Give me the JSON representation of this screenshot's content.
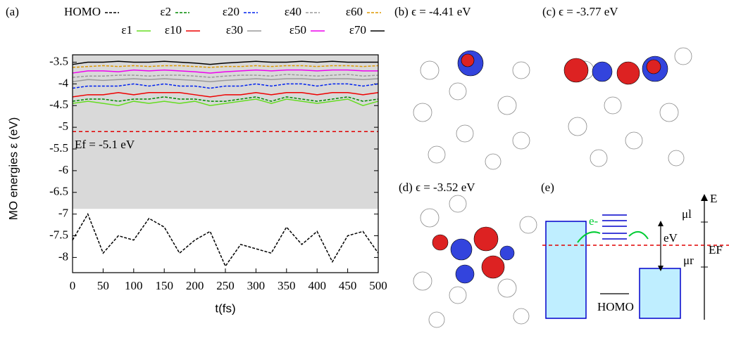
{
  "chart_data": {
    "type": "line",
    "panel_label": "(a)",
    "x_label": "t(fs)",
    "y_label": "MO energies ε (eV)",
    "x": [
      0,
      25,
      50,
      75,
      100,
      125,
      150,
      175,
      200,
      225,
      250,
      275,
      300,
      325,
      350,
      375,
      400,
      425,
      450,
      475,
      500
    ],
    "xlim": [
      0,
      500
    ],
    "xticks": [
      0,
      50,
      100,
      150,
      200,
      250,
      300,
      350,
      400,
      450,
      500
    ],
    "ylim": [
      -8.35,
      -3.33
    ],
    "yticks": [
      -8,
      -7.5,
      -7,
      -6.5,
      -6,
      -5.5,
      -5,
      -4.5,
      -4,
      -3.5
    ],
    "shaded_range": [
      -6.88,
      -3.33
    ],
    "shade_color": "#d9d9d9",
    "hline": {
      "value": -5.1,
      "color": "#e00000",
      "label": "Ef = -5.1 eV"
    },
    "series": [
      {
        "name": "HOMO",
        "color": "#000000",
        "dash": true,
        "values": [
          -7.6,
          -7.0,
          -7.9,
          -7.5,
          -7.6,
          -7.1,
          -7.3,
          -7.9,
          -7.6,
          -7.4,
          -8.2,
          -7.7,
          -7.8,
          -7.9,
          -7.3,
          -7.7,
          -7.4,
          -8.1,
          -7.5,
          -7.4,
          -7.9
        ]
      },
      {
        "name": "ε1",
        "color": "#66dd22",
        "dash": false,
        "values": [
          -4.45,
          -4.4,
          -4.45,
          -4.5,
          -4.4,
          -4.45,
          -4.4,
          -4.45,
          -4.4,
          -4.5,
          -4.45,
          -4.4,
          -4.35,
          -4.45,
          -4.35,
          -4.4,
          -4.45,
          -4.4,
          -4.35,
          -4.5,
          -4.4
        ]
      },
      {
        "name": "ε2",
        "color": "#008800",
        "dash": true,
        "values": [
          -4.4,
          -4.35,
          -4.35,
          -4.4,
          -4.35,
          -4.35,
          -4.3,
          -4.35,
          -4.35,
          -4.4,
          -4.4,
          -4.35,
          -4.3,
          -4.4,
          -4.3,
          -4.35,
          -4.4,
          -4.35,
          -4.3,
          -4.4,
          -4.35
        ]
      },
      {
        "name": "ε10",
        "color": "#ee0000",
        "dash": false,
        "values": [
          -4.3,
          -4.25,
          -4.25,
          -4.2,
          -4.25,
          -4.2,
          -4.2,
          -4.2,
          -4.25,
          -4.3,
          -4.25,
          -4.25,
          -4.2,
          -4.25,
          -4.2,
          -4.2,
          -4.25,
          -4.2,
          -4.2,
          -4.25,
          -4.2
        ]
      },
      {
        "name": "ε20",
        "color": "#0022ee",
        "dash": true,
        "values": [
          -4.1,
          -4.05,
          -4.05,
          -4.05,
          -4.0,
          -4.05,
          -4.0,
          -4.05,
          -4.05,
          -4.1,
          -4.05,
          -4.05,
          -4.0,
          -4.05,
          -4.0,
          -4.0,
          -4.05,
          -4.0,
          -4.0,
          -4.05,
          -4.0
        ]
      },
      {
        "name": "ε30",
        "color": "#999999",
        "dash": false,
        "values": [
          -3.95,
          -3.9,
          -3.92,
          -3.9,
          -3.88,
          -3.9,
          -3.88,
          -3.9,
          -3.92,
          -3.95,
          -3.92,
          -3.9,
          -3.88,
          -3.9,
          -3.88,
          -3.88,
          -3.9,
          -3.88,
          -3.88,
          -3.9,
          -3.88
        ]
      },
      {
        "name": "ε40",
        "color": "#999999",
        "dash": true,
        "values": [
          -3.85,
          -3.82,
          -3.82,
          -3.8,
          -3.8,
          -3.82,
          -3.8,
          -3.8,
          -3.82,
          -3.85,
          -3.82,
          -3.8,
          -3.8,
          -3.82,
          -3.78,
          -3.8,
          -3.82,
          -3.8,
          -3.78,
          -3.82,
          -3.8
        ]
      },
      {
        "name": "ε50",
        "color": "#ee00ee",
        "dash": false,
        "values": [
          -3.75,
          -3.7,
          -3.7,
          -3.72,
          -3.68,
          -3.7,
          -3.68,
          -3.7,
          -3.72,
          -3.75,
          -3.72,
          -3.7,
          -3.68,
          -3.7,
          -3.68,
          -3.68,
          -3.7,
          -3.68,
          -3.68,
          -3.7,
          -3.7
        ]
      },
      {
        "name": "ε60",
        "color": "#dd9900",
        "dash": true,
        "values": [
          -3.62,
          -3.6,
          -3.58,
          -3.6,
          -3.58,
          -3.6,
          -3.58,
          -3.58,
          -3.6,
          -3.62,
          -3.6,
          -3.6,
          -3.58,
          -3.6,
          -3.58,
          -3.58,
          -3.6,
          -3.58,
          -3.58,
          -3.6,
          -3.58
        ]
      },
      {
        "name": "ε70",
        "color": "#000000",
        "dash": false,
        "values": [
          -3.55,
          -3.5,
          -3.5,
          -3.48,
          -3.5,
          -3.5,
          -3.48,
          -3.5,
          -3.52,
          -3.55,
          -3.52,
          -3.5,
          -3.48,
          -3.5,
          -3.5,
          -3.48,
          -3.5,
          -3.48,
          -3.5,
          -3.5,
          -3.5
        ]
      }
    ]
  },
  "panels": {
    "b": "(b) ϵ = -4.41 eV",
    "c": "(c) ϵ = -3.77 eV",
    "d": "(d) ϵ = -3.52 eV",
    "e": "(e)"
  },
  "diagram": {
    "E": "E",
    "mu_l": "μl",
    "E_F": "EF",
    "mu_r": "μr",
    "bias": "eV",
    "electron": "e-",
    "homo": "HOMO"
  }
}
